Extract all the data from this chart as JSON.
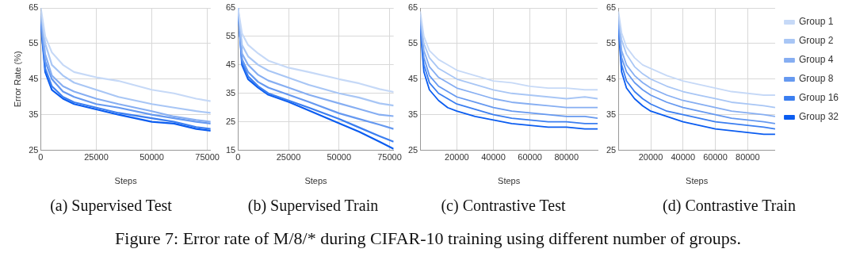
{
  "chart_data": [
    {
      "type": "line",
      "title": "(a) Supervised Test",
      "xlabel": "Steps",
      "ylabel": "Error Rate (%)",
      "annotations": [
        "Figure 7: Error rate of M/8/* during CIFAR-10 training using different number of groups."
      ],
      "grid": true,
      "xlim": [
        0,
        76500
      ],
      "xticks": [
        0,
        25000,
        50000,
        75000
      ],
      "ylim": [
        25,
        65
      ],
      "yticks": [
        25,
        35,
        45,
        55,
        65
      ],
      "x": [
        0,
        2000,
        5000,
        10000,
        15000,
        25000,
        35000,
        50000,
        60000,
        70000,
        76500
      ],
      "series": [
        {
          "color": "#c6d9f7",
          "values": [
            65,
            57,
            52.5,
            49,
            47,
            45.5,
            44.5,
            42,
            41,
            39.5,
            38.8
          ]
        },
        {
          "color": "#a8c6f5",
          "values": [
            64,
            55,
            49,
            46,
            44,
            42,
            40,
            38,
            37,
            36,
            35.5
          ]
        },
        {
          "color": "#86aef2",
          "values": [
            63,
            52,
            46,
            43,
            41.5,
            39.5,
            38,
            36,
            34.5,
            33.5,
            33
          ]
        },
        {
          "color": "#6699f0",
          "values": [
            62,
            50,
            45,
            41.5,
            40,
            38,
            37,
            35,
            34,
            33,
            32.5
          ]
        },
        {
          "color": "#3b7ef0",
          "values": [
            61,
            48,
            43,
            40,
            38.5,
            37,
            35.5,
            34,
            33,
            31.5,
            31
          ]
        },
        {
          "color": "#0a5cf0",
          "values": [
            60.5,
            47,
            42,
            39.5,
            38,
            36.5,
            35,
            33,
            32.5,
            31,
            30.5
          ]
        }
      ]
    },
    {
      "type": "line",
      "title": "(b) Supervised Train",
      "xlabel": "Steps",
      "grid": true,
      "xlim": [
        0,
        77000
      ],
      "xticks": [
        0,
        25000,
        50000,
        75000
      ],
      "ylim": [
        15,
        65
      ],
      "yticks": [
        15,
        25,
        35,
        45,
        55,
        65
      ],
      "x": [
        0,
        2000,
        5000,
        10000,
        15000,
        25000,
        35000,
        50000,
        60000,
        70000,
        77000
      ],
      "series": [
        {
          "color": "#c6d9f7",
          "values": [
            65,
            56,
            52,
            49,
            46.5,
            44,
            42.5,
            40,
            38.5,
            36.5,
            35.5
          ]
        },
        {
          "color": "#a8c6f5",
          "values": [
            65,
            52,
            48,
            45,
            43,
            40.5,
            38,
            35,
            33.5,
            31.5,
            30.7
          ]
        },
        {
          "color": "#86aef2",
          "values": [
            65,
            49,
            45,
            41.5,
            39.5,
            37,
            34.5,
            31.5,
            29.5,
            27.5,
            27
          ]
        },
        {
          "color": "#6699f0",
          "values": [
            65,
            47,
            42.5,
            39,
            37,
            34.5,
            32,
            28,
            26,
            24,
            22.5
          ]
        },
        {
          "color": "#3b7ef0",
          "values": [
            65,
            46,
            41,
            37.5,
            35,
            32.5,
            30,
            26,
            23,
            20,
            18
          ]
        },
        {
          "color": "#0a5cf0",
          "values": [
            65,
            45,
            40,
            37,
            34.5,
            32,
            29,
            24.5,
            21.5,
            18,
            15.5
          ]
        }
      ]
    },
    {
      "type": "line",
      "title": "(c) Contrastive Test",
      "xlabel": "Steps",
      "grid": true,
      "xlim": [
        0,
        97000
      ],
      "xticks": [
        20000,
        40000,
        60000,
        80000
      ],
      "ylim": [
        25,
        65
      ],
      "yticks": [
        25,
        35,
        45,
        55,
        65
      ],
      "x": [
        0,
        2000,
        5000,
        10000,
        15000,
        20000,
        30000,
        40000,
        50000,
        60000,
        70000,
        80000,
        90000,
        97000
      ],
      "series": [
        {
          "color": "#c6d9f7",
          "values": [
            64,
            57,
            53,
            50.5,
            49,
            47.5,
            46,
            44.5,
            44,
            43,
            42.5,
            42.5,
            42,
            42
          ]
        },
        {
          "color": "#a8c6f5",
          "values": [
            63,
            55,
            51,
            48,
            46.5,
            45,
            43.5,
            42,
            41,
            40.5,
            40,
            39.5,
            40,
            39.5
          ]
        },
        {
          "color": "#86aef2",
          "values": [
            62,
            53,
            48.5,
            45.5,
            44,
            42.5,
            41,
            39.5,
            38.5,
            38,
            37.5,
            37,
            37,
            37
          ]
        },
        {
          "color": "#6699f0",
          "values": [
            61,
            51,
            46,
            43,
            41.5,
            40,
            38.5,
            37,
            36,
            35.5,
            35,
            34.5,
            34.5,
            34
          ]
        },
        {
          "color": "#3b7ef0",
          "values": [
            60,
            49,
            44,
            41,
            39.5,
            38,
            36.5,
            35,
            34,
            33.5,
            33,
            33,
            32.5,
            32.5
          ]
        },
        {
          "color": "#0a5cf0",
          "values": [
            59,
            47,
            42,
            39,
            37,
            36,
            34.5,
            33.5,
            32.5,
            32,
            31.5,
            31.5,
            31,
            31
          ]
        }
      ]
    },
    {
      "type": "line",
      "title": "(d) Contrastive Train",
      "xlabel": "Steps",
      "grid": true,
      "legend": "right",
      "xlim": [
        0,
        97000
      ],
      "xticks": [
        20000,
        40000,
        60000,
        80000
      ],
      "ylim": [
        25,
        65
      ],
      "yticks": [
        25,
        35,
        45,
        55,
        65
      ],
      "x": [
        0,
        2000,
        5000,
        10000,
        15000,
        20000,
        30000,
        40000,
        50000,
        60000,
        70000,
        80000,
        90000,
        97000
      ],
      "series": [
        {
          "name": "Group 1",
          "color": "#c6d9f7",
          "values": [
            64,
            58,
            54,
            51,
            49,
            48,
            46,
            44.5,
            43.5,
            42.5,
            41.5,
            41,
            40.5,
            40.5
          ]
        },
        {
          "name": "Group 2",
          "color": "#a8c6f5",
          "values": [
            63,
            56,
            52,
            48.5,
            46.5,
            45,
            43,
            41.5,
            40.5,
            39.5,
            38.5,
            38,
            37.5,
            37
          ]
        },
        {
          "name": "Group 4",
          "color": "#86aef2",
          "values": [
            62,
            53,
            49,
            46,
            44,
            42.5,
            40.5,
            39,
            38,
            37,
            36,
            35.5,
            35,
            34.5
          ]
        },
        {
          "name": "Group 8",
          "color": "#6699f0",
          "values": [
            61,
            51,
            47,
            44,
            42,
            40.5,
            38.5,
            37,
            36,
            35,
            34,
            33.5,
            33,
            32.5
          ]
        },
        {
          "name": "Group 16",
          "color": "#3b7ef0",
          "values": [
            60,
            49,
            44.5,
            41.5,
            39.5,
            38,
            36,
            35,
            34,
            33,
            32.5,
            32,
            31.5,
            31
          ]
        },
        {
          "name": "Group 32",
          "color": "#0a5cf0",
          "values": [
            59,
            47,
            42.5,
            39.5,
            37.5,
            36,
            34.5,
            33,
            32,
            31,
            30.5,
            30,
            29.5,
            29.5
          ]
        }
      ]
    }
  ]
}
